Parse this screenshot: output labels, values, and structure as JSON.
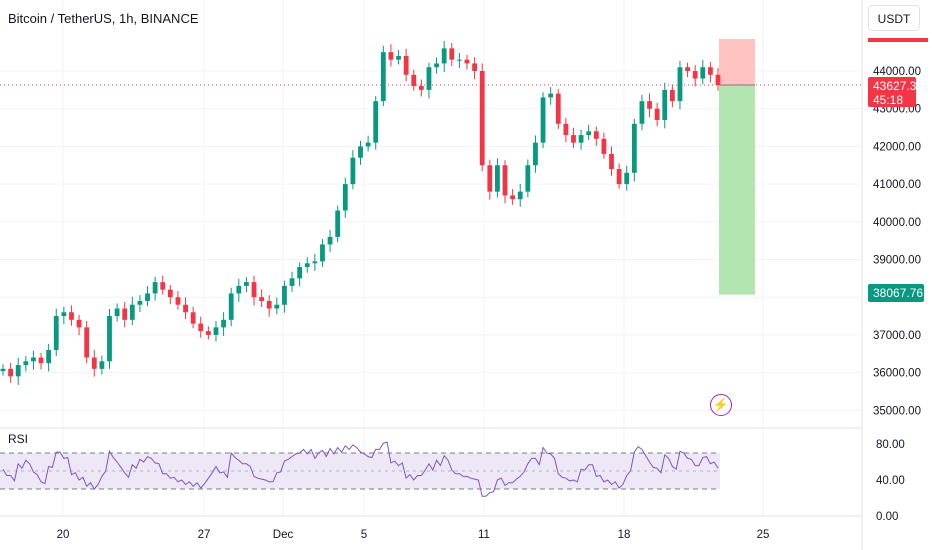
{
  "header": {
    "title": "Bitcoin / TetherUS, 1h, BINANCE",
    "currency": "USDT"
  },
  "indicator": {
    "label": "RSI"
  },
  "price_tags": {
    "last_price": "43627.39",
    "countdown": "45:18",
    "target_price": "38067.76"
  },
  "colors": {
    "up": "#089981",
    "down": "#f23645",
    "rsi_line": "#7e57c2",
    "rsi_band": "#ede7f6",
    "profit_zone": "#b2e5b0",
    "loss_zone": "#ffc4c2",
    "price_line": "#f23645"
  },
  "chart_data": [
    {
      "type": "candlestick",
      "title": "Bitcoin / TetherUS, 1h, BINANCE",
      "x_tick_labels": [
        "20",
        "27",
        "Dec",
        "5",
        "11",
        "18",
        "25"
      ],
      "y_tick_labels": [
        "44000.00",
        "43000.00",
        "42000.00",
        "41000.00",
        "40000.00",
        "39000.00",
        "38000.00",
        "37000.00",
        "36000.00",
        "35000.00"
      ],
      "ylim": [
        34750,
        45200
      ],
      "last_price": 43627.39,
      "close_series": [
        36100,
        35900,
        36200,
        36300,
        36400,
        36250,
        36600,
        37500,
        37600,
        37400,
        37200,
        36400,
        36100,
        36300,
        37500,
        37700,
        37400,
        37800,
        37900,
        38100,
        38400,
        38200,
        38000,
        37800,
        37600,
        37300,
        37100,
        37000,
        37200,
        37400,
        38100,
        38300,
        38400,
        38000,
        37900,
        37700,
        37800,
        38300,
        38500,
        38800,
        38900,
        38950,
        39400,
        39600,
        40300,
        41000,
        41700,
        42000,
        42100,
        43200,
        44500,
        44300,
        44400,
        43900,
        43600,
        43500,
        44100,
        44200,
        44600,
        44300,
        44300,
        44200,
        44000,
        41500,
        40800,
        41500,
        40700,
        40600,
        40800,
        41500,
        42100,
        43300,
        43400,
        42600,
        42300,
        42100,
        42300,
        42400,
        42200,
        41800,
        41400,
        41000,
        41300,
        42600,
        43200,
        43000,
        42700,
        43500,
        43200,
        44100,
        44000,
        43800,
        44100,
        43900,
        43627
      ],
      "position_tool": {
        "type": "short",
        "entry": 43627.39,
        "stop": 44850,
        "target": 38067.76
      }
    },
    {
      "type": "line",
      "title": "RSI",
      "y_tick_labels": [
        "80.00",
        "40.00",
        "0.00"
      ],
      "ylim": [
        0,
        100
      ],
      "band": [
        30,
        70
      ],
      "midline": 50,
      "values": [
        52,
        45,
        58,
        62,
        49,
        38,
        55,
        71,
        64,
        46,
        40,
        33,
        30,
        44,
        72,
        60,
        48,
        57,
        63,
        66,
        59,
        47,
        42,
        38,
        35,
        33,
        31,
        42,
        55,
        49,
        70,
        62,
        58,
        44,
        41,
        38,
        48,
        61,
        66,
        70,
        69,
        64,
        73,
        75,
        76,
        78,
        79,
        71,
        66,
        74,
        81,
        59,
        56,
        42,
        40,
        45,
        58,
        62,
        67,
        51,
        47,
        44,
        41,
        22,
        26,
        40,
        34,
        37,
        44,
        58,
        64,
        76,
        69,
        47,
        42,
        40,
        52,
        57,
        44,
        38,
        35,
        31,
        45,
        71,
        74,
        60,
        53,
        68,
        55,
        72,
        64,
        56,
        65,
        58,
        53
      ]
    }
  ]
}
